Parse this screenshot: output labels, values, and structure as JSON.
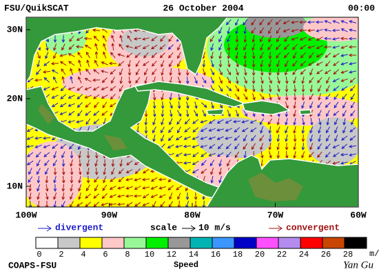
{
  "header": {
    "title": "FSU/QuikSCAT",
    "date": "26 October 2004",
    "time": "00:00"
  },
  "map": {
    "lat_labels": [
      "30N",
      "20N",
      "10N"
    ],
    "lon_labels": [
      "100W",
      "90W",
      "80W",
      "70W",
      "60W"
    ]
  },
  "legend": {
    "divergent": "divergent",
    "scale": "scale",
    "scale_value": "10 m/s",
    "convergent": "convergent"
  },
  "colorbar": {
    "ticks": [
      "0",
      "2",
      "4",
      "6",
      "8",
      "10",
      "12",
      "14",
      "16",
      "18",
      "20",
      "22",
      "24",
      "26",
      "28"
    ],
    "unit": "m/s",
    "label": "Speed",
    "colors": [
      "#ffffff",
      "#c8c8c8",
      "#ffff00",
      "#ffc8c8",
      "#98f898",
      "#00f000",
      "#989898",
      "#00b4b4",
      "#3c96ff",
      "#0000c8",
      "#ff50ff",
      "#b48cf0",
      "#ff0000",
      "#c84600",
      "#000000"
    ]
  },
  "footer": {
    "left": "COAPS-FSU",
    "right": "Yan Gu"
  }
}
